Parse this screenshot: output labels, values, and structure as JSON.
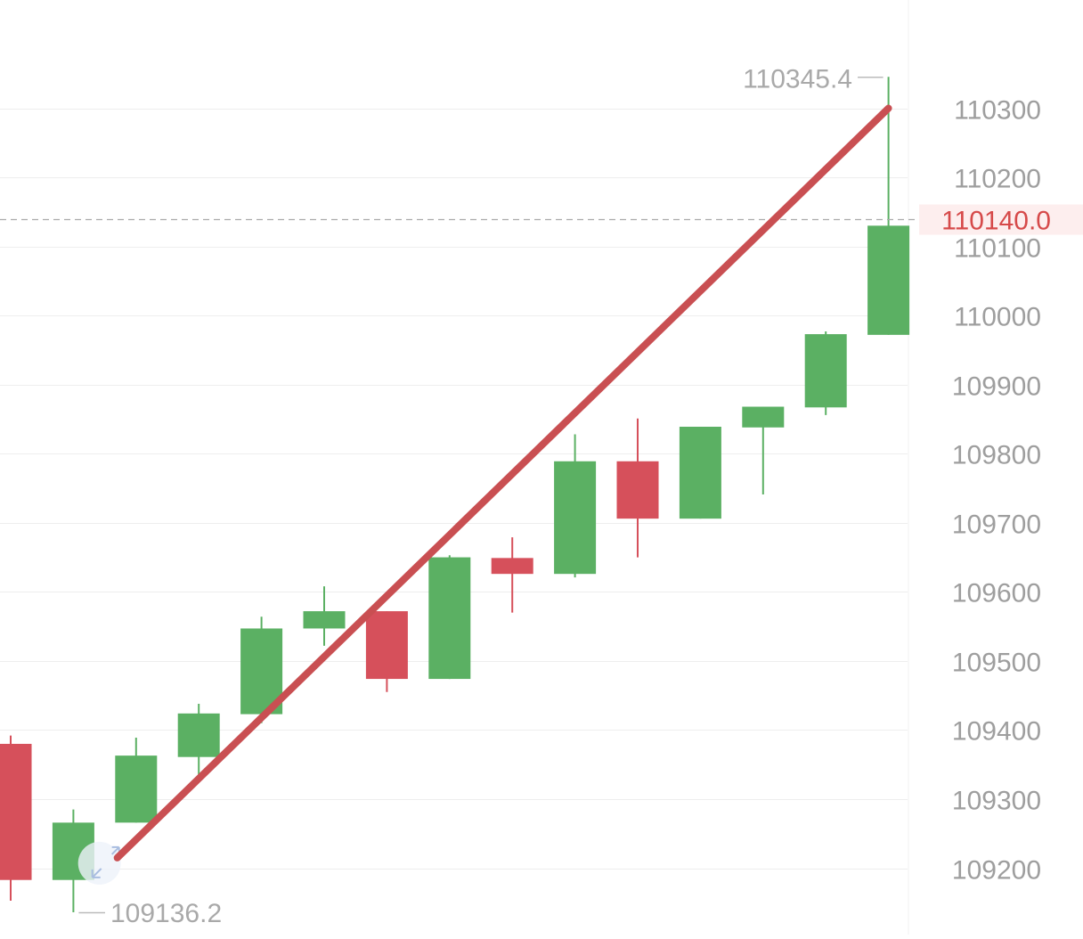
{
  "chart_data": {
    "type": "candlestick",
    "ylim": [
      109136.2,
      110345.4
    ],
    "y_ticks": [
      "109200",
      "109300",
      "109400",
      "109500",
      "109600",
      "109700",
      "109800",
      "109900",
      "110000",
      "110100",
      "110200",
      "110300"
    ],
    "grid": true,
    "colors": {
      "up": "#5bb063",
      "down": "#d6505b",
      "trendline": "#c94f52",
      "grid": "#eeeeee",
      "axis_text": "#9e9e9e",
      "current_price": "#d64a4a"
    },
    "candles": [
      {
        "open": 109380,
        "close": 109183,
        "high": 109392,
        "low": 109153
      },
      {
        "open": 109183,
        "close": 109266,
        "high": 109285,
        "low": 109136.2
      },
      {
        "open": 109266,
        "close": 109363,
        "high": 109389,
        "low": 109266
      },
      {
        "open": 109361,
        "close": 109424,
        "high": 109438,
        "low": 109327
      },
      {
        "open": 109423,
        "close": 109547,
        "high": 109564,
        "low": 109410
      },
      {
        "open": 109547,
        "close": 109572,
        "high": 109608,
        "low": 109522
      },
      {
        "open": 109572,
        "close": 109474,
        "high": 109572,
        "low": 109455
      },
      {
        "open": 109474,
        "close": 109650,
        "high": 109653,
        "low": 109474
      },
      {
        "open": 109649,
        "close": 109626,
        "high": 109679,
        "low": 109570
      },
      {
        "open": 109626,
        "close": 109789,
        "high": 109828,
        "low": 109621
      },
      {
        "open": 109789,
        "close": 109706,
        "high": 109851,
        "low": 109650
      },
      {
        "open": 109706,
        "close": 109839,
        "high": 109839,
        "low": 109706
      },
      {
        "open": 109838,
        "close": 109868,
        "high": 109868,
        "low": 109741
      },
      {
        "open": 109867,
        "close": 109973,
        "high": 109977,
        "low": 109856
      },
      {
        "open": 109972,
        "close": 110130,
        "high": 110345.4,
        "low": 109972
      }
    ],
    "max_label": "110345.4",
    "min_label": "109136.2",
    "current_price": 110140.0,
    "current_price_label": "110140.0",
    "trendline": {
      "start": {
        "candle": 1.7,
        "value": 109215
      },
      "end": {
        "candle": 14,
        "value": 110300
      }
    }
  }
}
